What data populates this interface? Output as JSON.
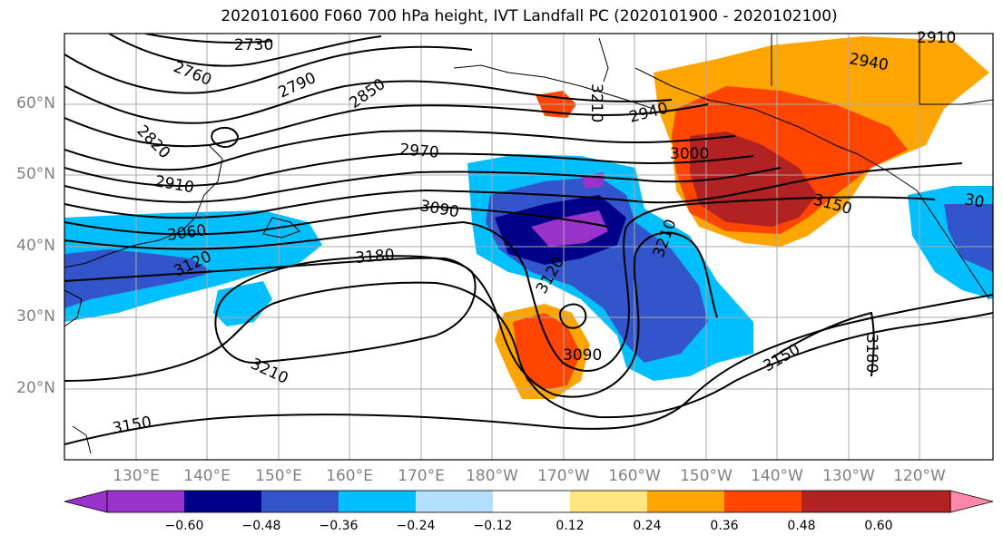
{
  "title": "2020101600 F060 700 hPa height, IVT Landfall PC (2020101900 - 2020102100)",
  "lat_labels": [
    "60°N",
    "50°N",
    "40°N",
    "30°N",
    "20°N"
  ],
  "lon_labels": [
    "130°E",
    "140°E",
    "150°E",
    "160°E",
    "170°E",
    "180°W",
    "170°W",
    "160°W",
    "150°W",
    "140°W",
    "130°W",
    "120°W"
  ],
  "contour_labels": [
    "2730",
    "2760",
    "2790",
    "2820",
    "2850",
    "2910",
    "2940",
    "2940",
    "2970",
    "3000",
    "3060",
    "3090",
    "3090",
    "3120",
    "3120",
    "3150",
    "3150",
    "3150",
    "3180",
    "3180",
    "3210",
    "3210",
    "3210",
    "2910",
    "30"
  ],
  "colorbar": {
    "labels": [
      "−0.60",
      "−0.48",
      "−0.36",
      "−0.24",
      "−0.12",
      "0.12",
      "0.24",
      "0.36",
      "0.48",
      "0.60"
    ],
    "colors": [
      "#9933cc",
      "#000088",
      "#3355cc",
      "#00bfff",
      "#b3e0ff",
      "#ffffff",
      "#ffe680",
      "#ffa500",
      "#ff4500",
      "#b22222",
      "#ff88aa"
    ]
  }
}
